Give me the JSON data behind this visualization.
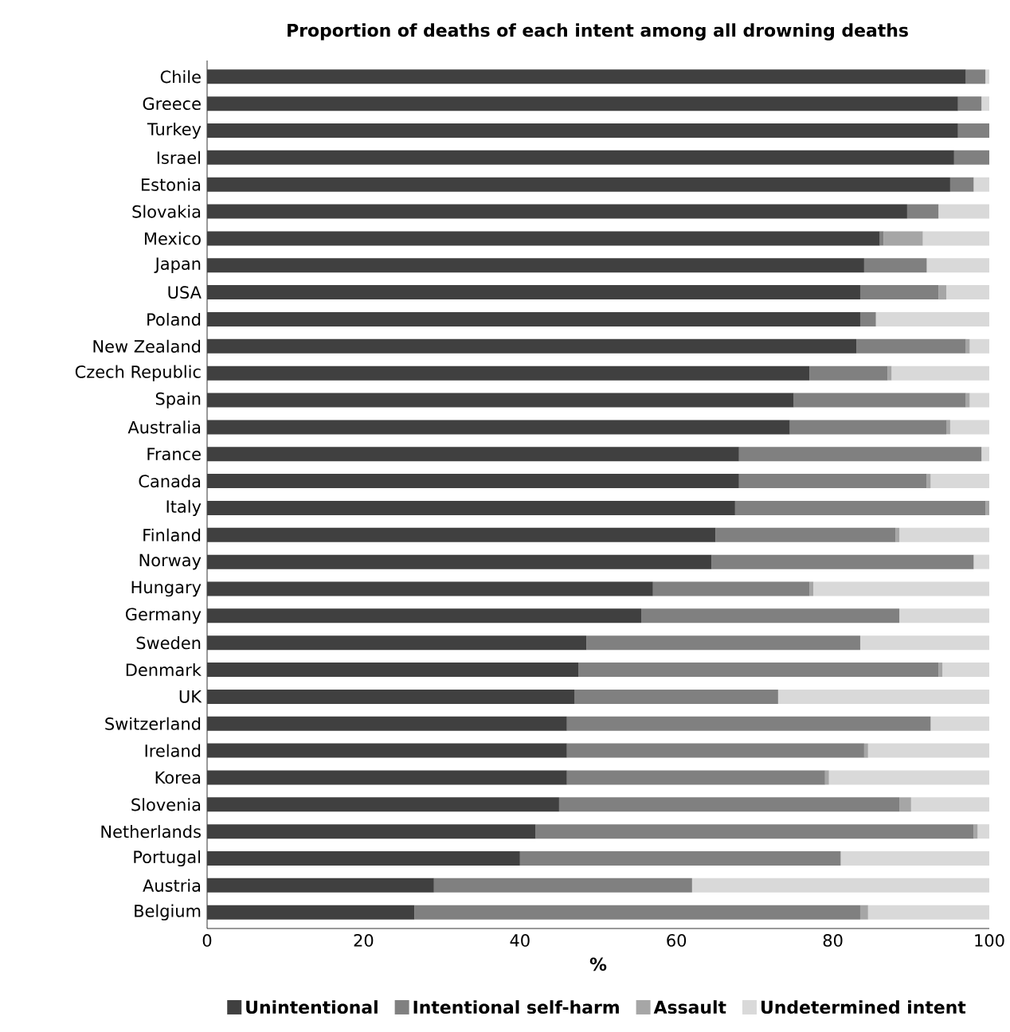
{
  "chart_data": {
    "type": "bar",
    "orientation": "horizontal",
    "stacked": true,
    "title": "Proportion of deaths of each intent among all drowning deaths",
    "xlabel": "%",
    "categories": [
      "Chile",
      "Greece",
      "Turkey",
      "Israel",
      "Estonia",
      "Slovakia",
      "Mexico",
      "Japan",
      "USA",
      "Poland",
      "New Zealand",
      "Czech Republic",
      "Spain",
      "Australia",
      "France",
      "Canada",
      "Italy",
      "Finland",
      "Norway",
      "Hungary",
      "Germany",
      "Sweden",
      "Denmark",
      "UK",
      "Switzerland",
      "Ireland",
      "Korea",
      "Slovenia",
      "Netherlands",
      "Portugal",
      "Austria",
      "Belgium"
    ],
    "series": [
      {
        "name": "Unintentional",
        "color": "#404040",
        "values": [
          97,
          96,
          96,
          95.5,
          95,
          89.5,
          86,
          84,
          83.5,
          83.5,
          83,
          77,
          75,
          74.5,
          68,
          68,
          67.5,
          65,
          64.5,
          57,
          55.5,
          48.5,
          47.5,
          47,
          46,
          46,
          46,
          45,
          42,
          40,
          29,
          26.5
        ]
      },
      {
        "name": "Intentional self-harm",
        "color": "#808080",
        "values": [
          2.5,
          3,
          4,
          4.5,
          3,
          4,
          0.5,
          8,
          10,
          2,
          14,
          10,
          22,
          20,
          31,
          24,
          32,
          23,
          33.5,
          20,
          33,
          35,
          46,
          26,
          46.5,
          38,
          33,
          43.5,
          56,
          41,
          33,
          57
        ]
      },
      {
        "name": "Assault",
        "color": "#a6a6a6",
        "values": [
          0,
          0,
          0,
          0,
          0,
          0,
          5,
          0,
          1,
          0,
          0.5,
          0.5,
          0.5,
          0.5,
          0,
          0.5,
          0.5,
          0.5,
          0,
          0.5,
          0,
          0,
          0.5,
          0,
          0,
          0.5,
          0.5,
          1.5,
          0.5,
          0,
          0,
          1
        ]
      },
      {
        "name": "Undetermined intent",
        "color": "#d9d9d9",
        "values": [
          0.5,
          1,
          0,
          0,
          2,
          6.5,
          8.5,
          8,
          5.5,
          14.5,
          2.5,
          12.5,
          2.5,
          5,
          1,
          7.5,
          0,
          11.5,
          2,
          22.5,
          11.5,
          16.5,
          6,
          27,
          7.5,
          15.5,
          20.5,
          10,
          1.5,
          19,
          38,
          15.5
        ]
      }
    ],
    "xlim": [
      0,
      100
    ],
    "xticks": [
      0,
      20,
      40,
      60,
      80,
      100
    ],
    "legend": "bottom"
  }
}
